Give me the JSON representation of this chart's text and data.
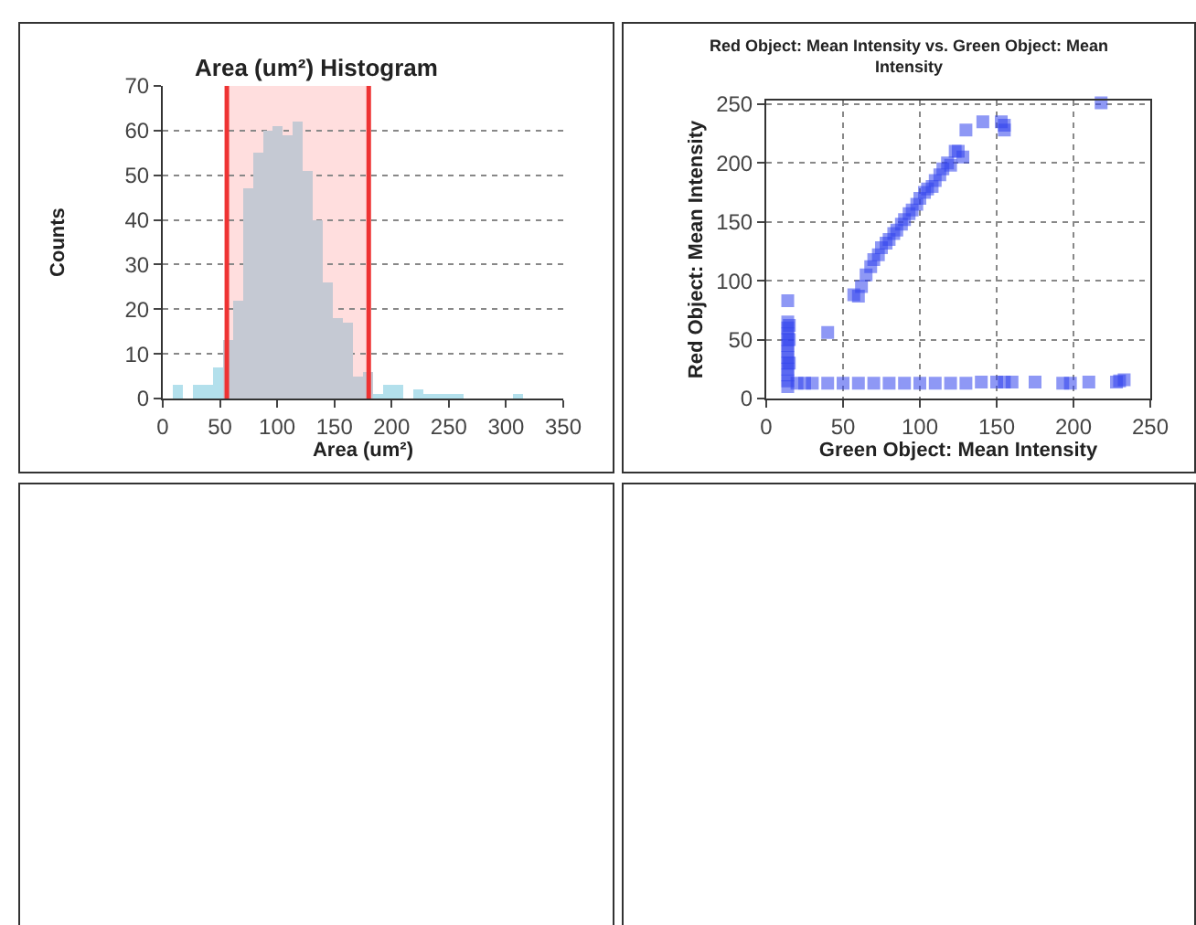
{
  "chart_data": [
    {
      "type": "histogram",
      "title": "Area (um²) Histogram",
      "xlabel": "Area (um²)",
      "ylabel": "Counts",
      "bins": [
        0,
        8.75,
        17.5,
        26.25,
        35,
        43.75,
        52.5,
        61.25,
        70,
        78.75,
        87.5,
        96.25,
        105,
        113.75,
        122.5,
        131.25,
        140,
        148.75,
        157.5,
        166.25,
        175,
        183.75,
        192.5,
        201.25,
        210,
        218.75,
        227.5,
        236.25,
        245,
        253.75,
        262.5,
        271.25,
        280,
        288.75,
        297.5,
        306.25,
        315,
        323.75,
        332.5,
        341.25,
        350
      ],
      "values": [
        0,
        3,
        0,
        3,
        3,
        7,
        13,
        22,
        47,
        55,
        60,
        61,
        59,
        62,
        51,
        40,
        26,
        18,
        17,
        5,
        6,
        1,
        3,
        3,
        0,
        2,
        1,
        1,
        1,
        1,
        0,
        0,
        0,
        0,
        0,
        1,
        0,
        0,
        0,
        0
      ],
      "colors": [
        "#b3e0ec",
        "#b3e0ec",
        "#b3e0ec",
        "#b3e0ec",
        "#b3e0ec",
        "#b3e0ec",
        "#c5c9d3",
        "#c5c9d3",
        "#c5c9d3",
        "#c5c9d3",
        "#c5c9d3",
        "#c5c9d3",
        "#c5c9d3",
        "#c5c9d3",
        "#c5c9d3",
        "#c5c9d3",
        "#c5c9d3",
        "#c5c9d3",
        "#c5c9d3",
        "#c5c9d3",
        "#c5c9d3",
        "#b3e0ec",
        "#b3e0ec",
        "#b3e0ec",
        "#b3e0ec",
        "#b3e0ec",
        "#b3e0ec",
        "#b3e0ec",
        "#b3e0ec",
        "#b3e0ec",
        "#b3e0ec",
        "#b3e0ec",
        "#b3e0ec",
        "#b3e0ec",
        "#b3e0ec",
        "#b3e0ec",
        "#b3e0ec",
        "#b3e0ec",
        "#b3e0ec",
        "#b3e0ec"
      ],
      "bands": [
        {
          "axis": "x",
          "from": 56,
          "to": 180,
          "color": "#ffdede"
        }
      ],
      "ref_lines": [
        {
          "axis": "x",
          "value": 56,
          "color": "#ee3333"
        },
        {
          "axis": "x",
          "value": 180,
          "color": "#ee3333"
        }
      ],
      "xlim": [
        0,
        350
      ],
      "xticks": [
        0,
        50,
        100,
        150,
        200,
        250,
        300,
        350
      ],
      "ylim": [
        0,
        70
      ],
      "yticks": [
        0,
        10,
        20,
        30,
        40,
        50,
        60,
        70
      ],
      "grid": "y"
    },
    {
      "type": "scatter",
      "title": "Red Object: Mean Intensity vs. Green Object: Mean Intensity",
      "xlabel": "Green Object: Mean Intensity",
      "ylabel": "Red Object: Mean Intensity",
      "series": [
        {
          "color": "#3344ee",
          "x": [
            14,
            14,
            14,
            14,
            14,
            14,
            14,
            14,
            14,
            14,
            14,
            14,
            14,
            15,
            15,
            15,
            20,
            25,
            30,
            40,
            50,
            60,
            70,
            80,
            90,
            100,
            110,
            120,
            130,
            140,
            150,
            155,
            160,
            175,
            193,
            198,
            210,
            228,
            230,
            233,
            40,
            57,
            60,
            62,
            65,
            68,
            70,
            73,
            75,
            78,
            80,
            83,
            85,
            88,
            90,
            93,
            95,
            98,
            100,
            103,
            105,
            108,
            110,
            113,
            115,
            118,
            120,
            123,
            125,
            128,
            130,
            141,
            153,
            155,
            155,
            218
          ],
          "values": [
            83,
            65,
            60,
            55,
            50,
            45,
            40,
            35,
            30,
            25,
            20,
            15,
            10,
            62,
            50,
            30,
            13,
            13,
            13,
            13,
            13,
            13,
            13,
            13,
            13,
            13,
            13,
            13,
            13,
            14,
            14,
            14,
            14,
            14,
            13,
            13,
            14,
            14,
            15,
            16,
            56,
            88,
            87,
            95,
            105,
            112,
            118,
            122,
            128,
            132,
            135,
            140,
            143,
            148,
            152,
            157,
            160,
            165,
            170,
            175,
            178,
            180,
            185,
            190,
            195,
            200,
            198,
            210,
            210,
            205,
            228,
            235,
            235,
            228,
            232,
            251
          ]
        }
      ],
      "marker": "square",
      "xlim": [
        0,
        250
      ],
      "xticks": [
        0,
        50,
        100,
        150,
        200,
        250
      ],
      "ylim": [
        0,
        253
      ],
      "yticks": [
        0,
        50,
        100,
        150,
        200,
        250
      ],
      "grid": true
    }
  ]
}
